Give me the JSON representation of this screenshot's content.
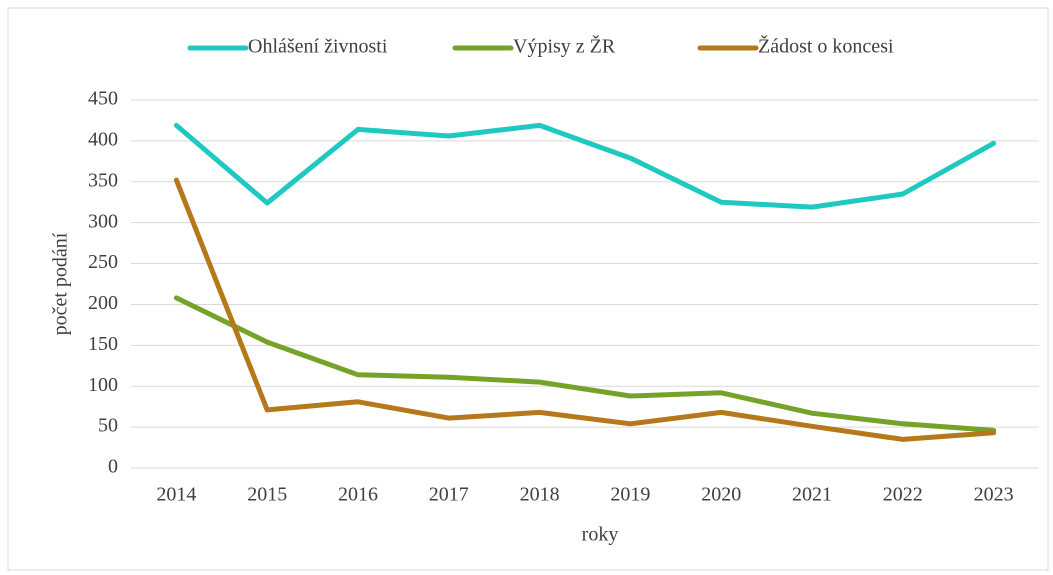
{
  "chart_data": {
    "type": "line",
    "categories": [
      "2014",
      "2015",
      "2016",
      "2017",
      "2018",
      "2019",
      "2020",
      "2021",
      "2022",
      "2023"
    ],
    "series": [
      {
        "name": "Ohlášení živnosti",
        "color": "#1fc8c0",
        "values": [
          419,
          324,
          414,
          406,
          419,
          379,
          325,
          319,
          335,
          397
        ]
      },
      {
        "name": "Výpisy z ŽR",
        "color": "#77a22a",
        "values": [
          208,
          154,
          114,
          111,
          105,
          88,
          92,
          67,
          54,
          46
        ]
      },
      {
        "name": "Žádost o koncesi",
        "color": "#b5781b",
        "values": [
          352,
          71,
          81,
          61,
          68,
          54,
          68,
          51,
          35,
          43
        ]
      }
    ],
    "xlabel": "roky",
    "ylabel": "počet podání",
    "ylim": [
      0,
      450
    ],
    "yticks": [
      0,
      50,
      100,
      150,
      200,
      250,
      300,
      350,
      400,
      450
    ],
    "grid": true,
    "legend": "top"
  }
}
